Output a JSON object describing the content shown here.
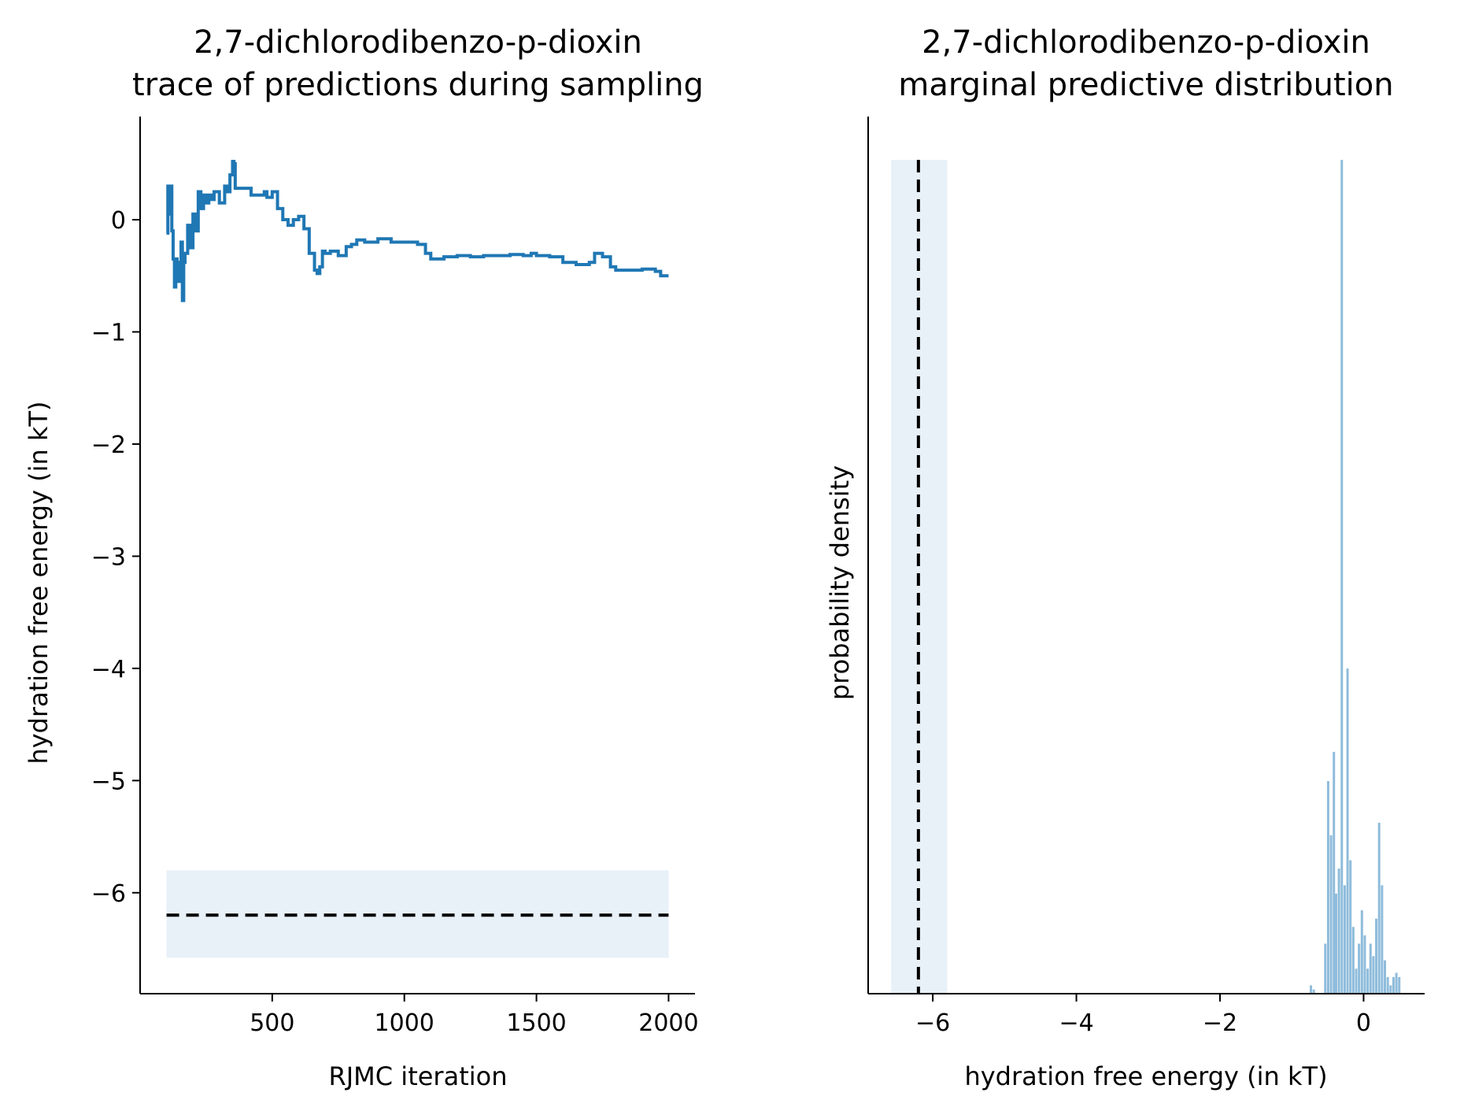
{
  "chart_data": [
    {
      "type": "line",
      "title": [
        "2,7-dichlorodibenzo-p-dioxin",
        "trace of predictions during sampling"
      ],
      "xlabel": "RJMC iteration",
      "ylabel": "hydration free energy (in kT)",
      "xlim": [
        0,
        2100
      ],
      "ylim": [
        -6.9,
        0.92
      ],
      "xticks": [
        500,
        1000,
        1500,
        2000
      ],
      "xtick_labels": [
        "500",
        "1000",
        "1500",
        "2000"
      ],
      "yticks": [
        0,
        -1,
        -2,
        -3,
        -4,
        -5,
        -6
      ],
      "ytick_labels": [
        "0",
        "−1",
        "−2",
        "−3",
        "−4",
        "−5",
        "−6"
      ],
      "grid": false,
      "series": [
        {
          "color": "#1f77b4",
          "style": "step",
          "x": [
            100,
            105,
            110,
            115,
            120,
            125,
            130,
            135,
            140,
            145,
            150,
            155,
            160,
            165,
            170,
            180,
            190,
            200,
            210,
            220,
            230,
            240,
            250,
            260,
            270,
            280,
            300,
            320,
            330,
            340,
            350,
            355,
            360,
            380,
            420,
            470,
            480,
            500,
            520,
            540,
            560,
            580,
            600,
            620,
            640,
            660,
            670,
            680,
            690,
            700,
            720,
            750,
            780,
            800,
            820,
            850,
            900,
            950,
            1000,
            1050,
            1080,
            1100,
            1150,
            1200,
            1250,
            1300,
            1400,
            1450,
            1480,
            1500,
            1550,
            1600,
            1650,
            1700,
            1720,
            1750,
            1780,
            1800,
            1850,
            1900,
            1950,
            1970,
            2000
          ],
          "y": [
            -0.12,
            0.3,
            0.05,
            0.3,
            -0.1,
            -0.35,
            -0.6,
            -0.35,
            -0.38,
            -0.55,
            -0.4,
            -0.2,
            -0.72,
            -0.38,
            -0.3,
            -0.05,
            -0.25,
            0.05,
            -0.1,
            0.25,
            0.1,
            0.22,
            0.15,
            0.22,
            0.18,
            0.25,
            0.15,
            0.3,
            0.25,
            0.4,
            0.52,
            0.5,
            0.28,
            0.28,
            0.22,
            0.25,
            0.2,
            0.25,
            0.1,
            0.0,
            -0.05,
            0.0,
            0.03,
            -0.08,
            -0.3,
            -0.45,
            -0.48,
            -0.42,
            -0.28,
            -0.3,
            -0.28,
            -0.32,
            -0.24,
            -0.22,
            -0.18,
            -0.2,
            -0.17,
            -0.2,
            -0.2,
            -0.22,
            -0.3,
            -0.35,
            -0.33,
            -0.32,
            -0.33,
            -0.32,
            -0.31,
            -0.32,
            -0.3,
            -0.32,
            -0.33,
            -0.38,
            -0.4,
            -0.38,
            -0.3,
            -0.33,
            -0.42,
            -0.45,
            -0.45,
            -0.44,
            -0.46,
            -0.5,
            -0.5
          ]
        }
      ],
      "band": {
        "xmin": 100,
        "xmax": 2000,
        "ymin": -6.58,
        "ymax": -5.8,
        "color": "#e8f0f8"
      },
      "reference_line": {
        "y": -6.2,
        "color": "#000000",
        "style": "dashed"
      }
    },
    {
      "type": "bar",
      "title": [
        "2,7-dichlorodibenzo-p-dioxin",
        "marginal predictive distribution"
      ],
      "xlabel": "hydration free energy (in kT)",
      "ylabel": "probability density",
      "xlim": [
        -6.9,
        0.85
      ],
      "ylim": [
        0,
        1.0
      ],
      "xticks": [
        -6,
        -4,
        -2,
        0
      ],
      "xtick_labels": [
        "−6",
        "−4",
        "−2",
        "0"
      ],
      "yticks": [],
      "grid": false,
      "bar_color": "#8fbcdb",
      "bin_width": 0.0395,
      "bin_left": [
        -0.75,
        -0.71,
        -0.55,
        -0.51,
        -0.47,
        -0.43,
        -0.4,
        -0.36,
        -0.32,
        -0.28,
        -0.24,
        -0.2,
        -0.16,
        -0.12,
        -0.08,
        -0.04,
        0.0,
        0.04,
        0.08,
        0.12,
        0.16,
        0.2,
        0.24,
        0.28,
        0.32,
        0.36,
        0.4,
        0.44,
        0.48
      ],
      "heights": [
        0.01,
        0.005,
        0.06,
        0.255,
        0.19,
        0.29,
        0.12,
        0.15,
        1.0,
        0.13,
        0.39,
        0.16,
        0.08,
        0.03,
        0.06,
        0.1,
        0.07,
        0.03,
        0.06,
        0.045,
        0.09,
        0.205,
        0.13,
        0.04,
        0.02,
        0.01,
        0.02,
        0.025,
        0.02
      ],
      "band": {
        "xmin": -6.58,
        "xmax": -5.8,
        "color": "#e8f0f8"
      },
      "reference_line": {
        "x": -6.2,
        "color": "#000000",
        "style": "dashed"
      }
    }
  ]
}
